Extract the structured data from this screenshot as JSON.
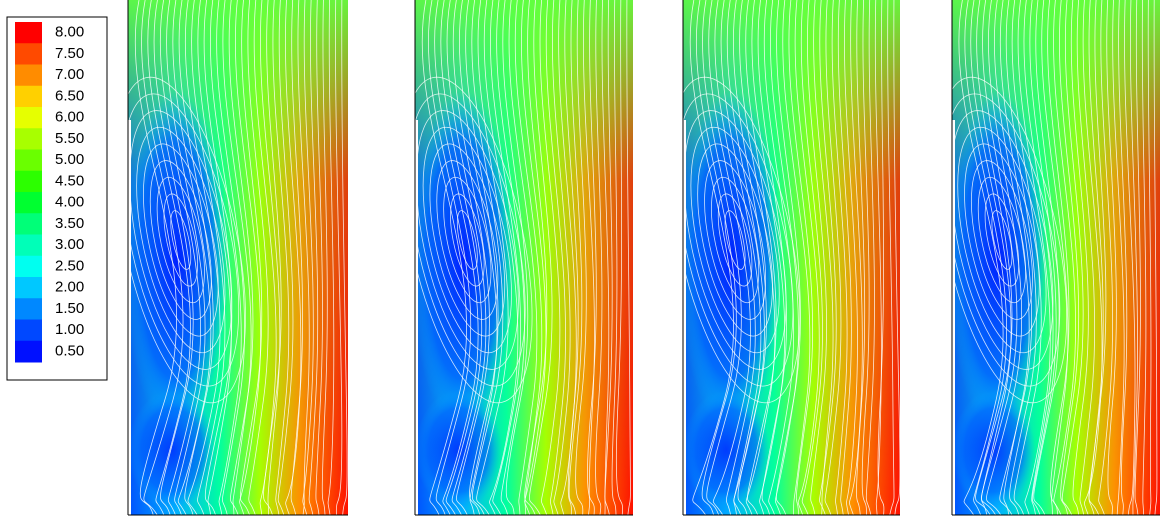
{
  "legend": {
    "levels": [
      {
        "label": "8.00",
        "color": "#ff0000"
      },
      {
        "label": "7.50",
        "color": "#ff4a00"
      },
      {
        "label": "7.00",
        "color": "#ff8c00"
      },
      {
        "label": "6.50",
        "color": "#ffd000"
      },
      {
        "label": "6.00",
        "color": "#e6ff00"
      },
      {
        "label": "5.50",
        "color": "#a8ff00"
      },
      {
        "label": "5.00",
        "color": "#6aff00"
      },
      {
        "label": "4.50",
        "color": "#2cff00"
      },
      {
        "label": "4.00",
        "color": "#00ff30"
      },
      {
        "label": "3.50",
        "color": "#00ff78"
      },
      {
        "label": "3.00",
        "color": "#00ffb8"
      },
      {
        "label": "2.50",
        "color": "#00fff0"
      },
      {
        "label": "2.00",
        "color": "#00c8ff"
      },
      {
        "label": "1.50",
        "color": "#0088ff"
      },
      {
        "label": "1.00",
        "color": "#0048ff"
      },
      {
        "label": "0.50",
        "color": "#0010ff"
      }
    ]
  }
}
